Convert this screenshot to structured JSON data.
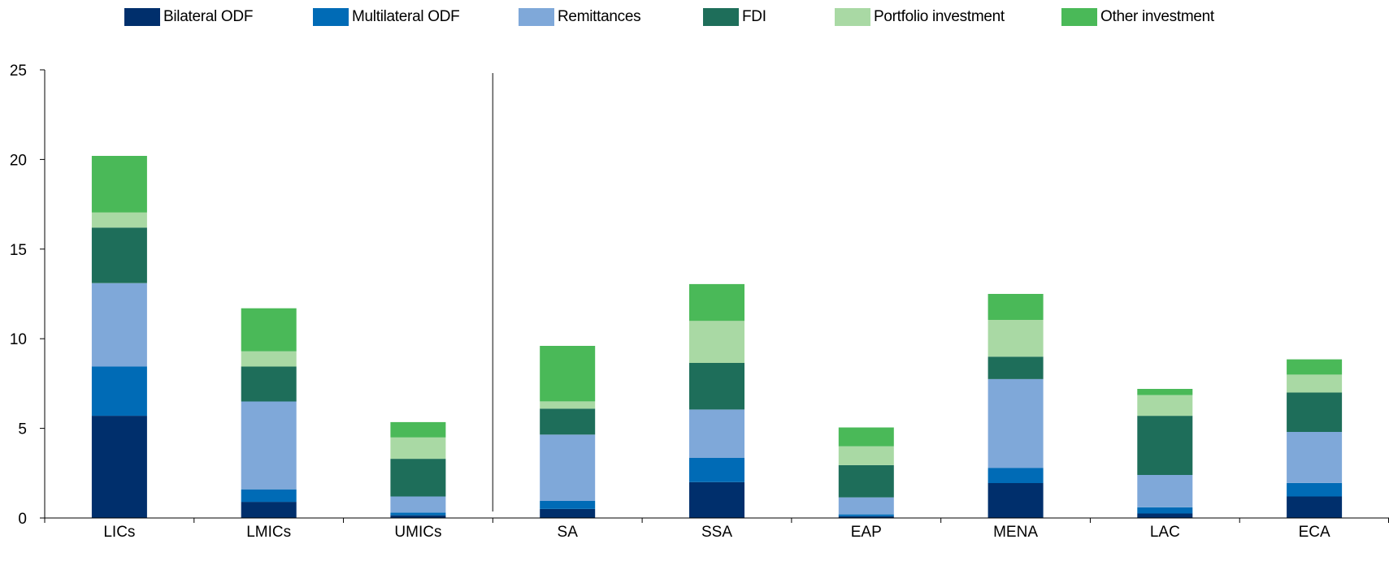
{
  "chart_data": {
    "type": "bar",
    "stacked": true,
    "categories": [
      "LICs",
      "LMICs",
      "UMICs",
      "SA",
      "SSA",
      "EAP",
      "MENA",
      "LAC",
      "ECA"
    ],
    "series": [
      {
        "name": "Bilateral ODF",
        "color": "#002f6c",
        "values": [
          5.7,
          0.9,
          0.15,
          0.5,
          2.0,
          0.1,
          1.95,
          0.25,
          1.2
        ]
      },
      {
        "name": "Multilateral ODF",
        "color": "#006bb6",
        "values": [
          2.75,
          0.7,
          0.15,
          0.45,
          1.35,
          0.1,
          0.85,
          0.35,
          0.75
        ]
      },
      {
        "name": "Remittances",
        "color": "#7fa8d9",
        "values": [
          4.65,
          4.9,
          0.9,
          3.7,
          2.7,
          0.95,
          4.95,
          1.8,
          2.85
        ]
      },
      {
        "name": "FDI",
        "color": "#1e6e5a",
        "values": [
          3.1,
          1.95,
          2.1,
          1.45,
          2.6,
          1.8,
          1.25,
          3.3,
          2.2
        ]
      },
      {
        "name": "Portfolio investment",
        "color": "#a9d9a4",
        "values": [
          0.85,
          0.85,
          1.2,
          0.4,
          2.35,
          1.05,
          2.05,
          1.15,
          1.0
        ]
      },
      {
        "name": "Other investment",
        "color": "#4ab958",
        "values": [
          3.15,
          2.4,
          0.85,
          3.1,
          2.05,
          1.05,
          1.45,
          0.35,
          0.85
        ]
      }
    ],
    "ylim": [
      0,
      25
    ],
    "yticks": [
      0,
      5,
      10,
      15,
      20,
      25
    ],
    "divider_after_category": "UMICs",
    "legend_position": "top",
    "grid": false
  }
}
